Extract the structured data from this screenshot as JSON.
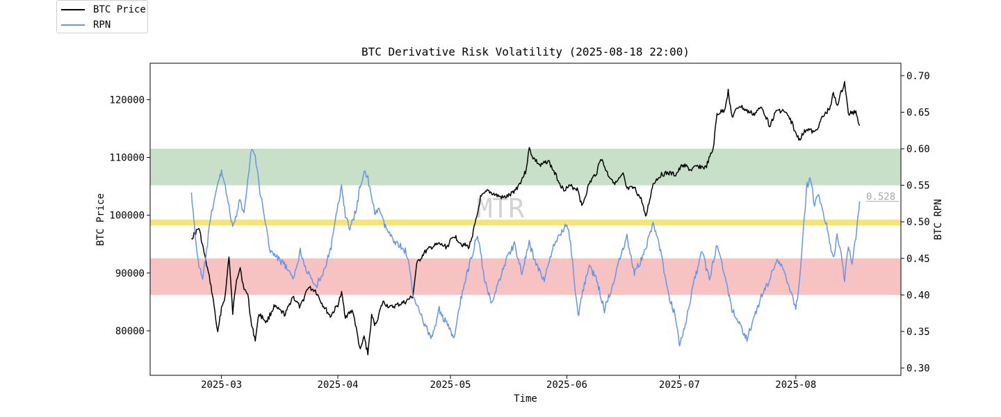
{
  "chart_data": {
    "type": "line",
    "title": "BTC Derivative Risk Volatility (2025-08-18 22:00)",
    "xlabel": "Time",
    "ylabel_left": "BTC Price",
    "ylabel_right": "BTC RPN",
    "watermark": "MTR",
    "x_ticks": [
      "2025-03",
      "2025-04",
      "2025-05",
      "2025-06",
      "2025-07",
      "2025-08"
    ],
    "x_range": [
      "2025-02-10",
      "2025-08-29"
    ],
    "y_left_ticks": [
      80000,
      90000,
      100000,
      110000,
      120000
    ],
    "y_left_range": [
      72300,
      126300
    ],
    "y_right_ticks": [
      "0.30",
      "0.35",
      "0.40",
      "0.45",
      "0.50",
      "0.55",
      "0.60",
      "0.65",
      "0.70"
    ],
    "y_right_range": [
      0.29,
      0.717
    ],
    "bands": [
      {
        "name": "high-risk-band",
        "from": 0.55,
        "to": 0.6,
        "color": "#c8e0c8"
      },
      {
        "name": "neutral-line",
        "from": 0.495,
        "to": 0.503,
        "color": "#f8e37a"
      },
      {
        "name": "low-risk-band",
        "from": 0.4,
        "to": 0.45,
        "color": "#f6c2c2"
      }
    ],
    "last_value_label": "0.528",
    "last_value": 0.528,
    "series": [
      {
        "name": "BTC Price",
        "axis": "left",
        "color": "#000000",
        "points": [
          [
            "2025-02-21",
            96000
          ],
          [
            "2025-02-23",
            97800
          ],
          [
            "2025-02-25",
            91500
          ],
          [
            "2025-02-26",
            88500
          ],
          [
            "2025-02-27",
            84500
          ],
          [
            "2025-02-28",
            79500
          ],
          [
            "2025-03-01",
            84000
          ],
          [
            "2025-03-02",
            86000
          ],
          [
            "2025-03-03",
            93000
          ],
          [
            "2025-03-04",
            83000
          ],
          [
            "2025-03-05",
            89000
          ],
          [
            "2025-03-06",
            91000
          ],
          [
            "2025-03-07",
            87000
          ],
          [
            "2025-03-08",
            86500
          ],
          [
            "2025-03-09",
            81000
          ],
          [
            "2025-03-10",
            78500
          ],
          [
            "2025-03-11",
            83000
          ],
          [
            "2025-03-13",
            81500
          ],
          [
            "2025-03-15",
            84200
          ],
          [
            "2025-03-18",
            82800
          ],
          [
            "2025-03-20",
            86000
          ],
          [
            "2025-03-22",
            84000
          ],
          [
            "2025-03-24",
            87500
          ],
          [
            "2025-03-26",
            87000
          ],
          [
            "2025-03-28",
            84500
          ],
          [
            "2025-03-30",
            82500
          ],
          [
            "2025-04-01",
            84500
          ],
          [
            "2025-04-02",
            86500
          ],
          [
            "2025-04-03",
            82500
          ],
          [
            "2025-04-05",
            83500
          ],
          [
            "2025-04-07",
            76500
          ],
          [
            "2025-04-08",
            79000
          ],
          [
            "2025-04-09",
            76000
          ],
          [
            "2025-04-10",
            82500
          ],
          [
            "2025-04-11",
            81000
          ],
          [
            "2025-04-13",
            85000
          ],
          [
            "2025-04-15",
            84000
          ],
          [
            "2025-04-17",
            84500
          ],
          [
            "2025-04-19",
            85000
          ],
          [
            "2025-04-21",
            86000
          ],
          [
            "2025-04-22",
            91500
          ],
          [
            "2025-04-24",
            93500
          ],
          [
            "2025-04-26",
            94500
          ],
          [
            "2025-04-28",
            95000
          ],
          [
            "2025-04-30",
            94500
          ],
          [
            "2025-05-02",
            96500
          ],
          [
            "2025-05-04",
            95000
          ],
          [
            "2025-05-06",
            94500
          ],
          [
            "2025-05-08",
            99500
          ],
          [
            "2025-05-09",
            103000
          ],
          [
            "2025-05-11",
            104200
          ],
          [
            "2025-05-13",
            103500
          ],
          [
            "2025-05-15",
            103000
          ],
          [
            "2025-05-17",
            103500
          ],
          [
            "2025-05-19",
            105000
          ],
          [
            "2025-05-21",
            107500
          ],
          [
            "2025-05-22",
            111500
          ],
          [
            "2025-05-23",
            110000
          ],
          [
            "2025-05-25",
            108500
          ],
          [
            "2025-05-27",
            109500
          ],
          [
            "2025-05-29",
            107000
          ],
          [
            "2025-05-31",
            104500
          ],
          [
            "2025-06-02",
            105000
          ],
          [
            "2025-06-04",
            104500
          ],
          [
            "2025-06-05",
            101500
          ],
          [
            "2025-06-07",
            105500
          ],
          [
            "2025-06-09",
            107500
          ],
          [
            "2025-06-10",
            110000
          ],
          [
            "2025-06-12",
            107000
          ],
          [
            "2025-06-14",
            105500
          ],
          [
            "2025-06-16",
            107000
          ],
          [
            "2025-06-17",
            104500
          ],
          [
            "2025-06-19",
            104700
          ],
          [
            "2025-06-21",
            102500
          ],
          [
            "2025-06-22",
            99500
          ],
          [
            "2025-06-24",
            105500
          ],
          [
            "2025-06-26",
            107000
          ],
          [
            "2025-06-28",
            107300
          ],
          [
            "2025-06-30",
            107000
          ],
          [
            "2025-07-02",
            108800
          ],
          [
            "2025-07-04",
            107800
          ],
          [
            "2025-07-06",
            108500
          ],
          [
            "2025-07-08",
            108200
          ],
          [
            "2025-07-10",
            111500
          ],
          [
            "2025-07-11",
            117500
          ],
          [
            "2025-07-13",
            118200
          ],
          [
            "2025-07-14",
            121500
          ],
          [
            "2025-07-15",
            117000
          ],
          [
            "2025-07-17",
            119000
          ],
          [
            "2025-07-19",
            118000
          ],
          [
            "2025-07-21",
            117500
          ],
          [
            "2025-07-23",
            118800
          ],
          [
            "2025-07-25",
            115500
          ],
          [
            "2025-07-27",
            118200
          ],
          [
            "2025-07-29",
            118000
          ],
          [
            "2025-07-31",
            116000
          ],
          [
            "2025-08-01",
            114000
          ],
          [
            "2025-08-02",
            113200
          ],
          [
            "2025-08-04",
            115000
          ],
          [
            "2025-08-06",
            114200
          ],
          [
            "2025-08-08",
            116800
          ],
          [
            "2025-08-10",
            118500
          ],
          [
            "2025-08-11",
            121000
          ],
          [
            "2025-08-12",
            119000
          ],
          [
            "2025-08-14",
            123000
          ],
          [
            "2025-08-15",
            117500
          ],
          [
            "2025-08-17",
            118000
          ],
          [
            "2025-08-18",
            115500
          ]
        ]
      },
      {
        "name": "RPN",
        "axis": "right",
        "color": "#6495ed",
        "points": [
          [
            "2025-02-21",
            0.54
          ],
          [
            "2025-02-22",
            0.48
          ],
          [
            "2025-02-23",
            0.44
          ],
          [
            "2025-02-24",
            0.42
          ],
          [
            "2025-02-25",
            0.46
          ],
          [
            "2025-02-26",
            0.5
          ],
          [
            "2025-02-27",
            0.53
          ],
          [
            "2025-02-28",
            0.55
          ],
          [
            "2025-03-01",
            0.57
          ],
          [
            "2025-03-02",
            0.55
          ],
          [
            "2025-03-03",
            0.52
          ],
          [
            "2025-03-04",
            0.49
          ],
          [
            "2025-03-05",
            0.51
          ],
          [
            "2025-03-06",
            0.53
          ],
          [
            "2025-03-07",
            0.51
          ],
          [
            "2025-03-08",
            0.56
          ],
          [
            "2025-03-09",
            0.6
          ],
          [
            "2025-03-10",
            0.59
          ],
          [
            "2025-03-11",
            0.55
          ],
          [
            "2025-03-12",
            0.52
          ],
          [
            "2025-03-13",
            0.49
          ],
          [
            "2025-03-14",
            0.46
          ],
          [
            "2025-03-16",
            0.45
          ],
          [
            "2025-03-18",
            0.44
          ],
          [
            "2025-03-20",
            0.42
          ],
          [
            "2025-03-22",
            0.46
          ],
          [
            "2025-03-24",
            0.43
          ],
          [
            "2025-03-26",
            0.41
          ],
          [
            "2025-03-28",
            0.43
          ],
          [
            "2025-03-30",
            0.46
          ],
          [
            "2025-04-01",
            0.52
          ],
          [
            "2025-04-02",
            0.55
          ],
          [
            "2025-04-03",
            0.51
          ],
          [
            "2025-04-04",
            0.49
          ],
          [
            "2025-04-05",
            0.5
          ],
          [
            "2025-04-06",
            0.52
          ],
          [
            "2025-04-07",
            0.55
          ],
          [
            "2025-04-08",
            0.57
          ],
          [
            "2025-04-09",
            0.56
          ],
          [
            "2025-04-10",
            0.53
          ],
          [
            "2025-04-11",
            0.51
          ],
          [
            "2025-04-12",
            0.52
          ],
          [
            "2025-04-13",
            0.5
          ],
          [
            "2025-04-15",
            0.48
          ],
          [
            "2025-04-17",
            0.47
          ],
          [
            "2025-04-19",
            0.46
          ],
          [
            "2025-04-20",
            0.44
          ],
          [
            "2025-04-21",
            0.4
          ],
          [
            "2025-04-22",
            0.39
          ],
          [
            "2025-04-24",
            0.36
          ],
          [
            "2025-04-26",
            0.34
          ],
          [
            "2025-04-28",
            0.38
          ],
          [
            "2025-04-30",
            0.36
          ],
          [
            "2025-05-02",
            0.34
          ],
          [
            "2025-05-04",
            0.4
          ],
          [
            "2025-05-06",
            0.44
          ],
          [
            "2025-05-08",
            0.48
          ],
          [
            "2025-05-09",
            0.46
          ],
          [
            "2025-05-10",
            0.42
          ],
          [
            "2025-05-12",
            0.39
          ],
          [
            "2025-05-14",
            0.42
          ],
          [
            "2025-05-16",
            0.45
          ],
          [
            "2025-05-18",
            0.47
          ],
          [
            "2025-05-20",
            0.43
          ],
          [
            "2025-05-22",
            0.47
          ],
          [
            "2025-05-24",
            0.44
          ],
          [
            "2025-05-26",
            0.42
          ],
          [
            "2025-05-28",
            0.46
          ],
          [
            "2025-05-30",
            0.48
          ],
          [
            "2025-06-01",
            0.5
          ],
          [
            "2025-06-02",
            0.47
          ],
          [
            "2025-06-03",
            0.42
          ],
          [
            "2025-06-04",
            0.37
          ],
          [
            "2025-06-05",
            0.4
          ],
          [
            "2025-06-07",
            0.44
          ],
          [
            "2025-06-09",
            0.42
          ],
          [
            "2025-06-11",
            0.38
          ],
          [
            "2025-06-13",
            0.41
          ],
          [
            "2025-06-15",
            0.45
          ],
          [
            "2025-06-17",
            0.48
          ],
          [
            "2025-06-19",
            0.43
          ],
          [
            "2025-06-21",
            0.45
          ],
          [
            "2025-06-23",
            0.48
          ],
          [
            "2025-06-24",
            0.5
          ],
          [
            "2025-06-26",
            0.46
          ],
          [
            "2025-06-28",
            0.4
          ],
          [
            "2025-06-30",
            0.37
          ],
          [
            "2025-07-01",
            0.33
          ],
          [
            "2025-07-03",
            0.37
          ],
          [
            "2025-07-05",
            0.42
          ],
          [
            "2025-07-07",
            0.46
          ],
          [
            "2025-07-09",
            0.42
          ],
          [
            "2025-07-11",
            0.47
          ],
          [
            "2025-07-13",
            0.43
          ],
          [
            "2025-07-15",
            0.38
          ],
          [
            "2025-07-17",
            0.36
          ],
          [
            "2025-07-19",
            0.34
          ],
          [
            "2025-07-21",
            0.37
          ],
          [
            "2025-07-23",
            0.4
          ],
          [
            "2025-07-25",
            0.42
          ],
          [
            "2025-07-27",
            0.45
          ],
          [
            "2025-07-29",
            0.43
          ],
          [
            "2025-07-31",
            0.4
          ],
          [
            "2025-08-01",
            0.38
          ],
          [
            "2025-08-02",
            0.42
          ],
          [
            "2025-08-03",
            0.49
          ],
          [
            "2025-08-04",
            0.55
          ],
          [
            "2025-08-05",
            0.56
          ],
          [
            "2025-08-06",
            0.52
          ],
          [
            "2025-08-07",
            0.54
          ],
          [
            "2025-08-08",
            0.52
          ],
          [
            "2025-08-09",
            0.5
          ],
          [
            "2025-08-10",
            0.47
          ],
          [
            "2025-08-11",
            0.45
          ],
          [
            "2025-08-12",
            0.48
          ],
          [
            "2025-08-13",
            0.46
          ],
          [
            "2025-08-14",
            0.42
          ],
          [
            "2025-08-15",
            0.47
          ],
          [
            "2025-08-16",
            0.44
          ],
          [
            "2025-08-17",
            0.48
          ],
          [
            "2025-08-18",
            0.528
          ]
        ]
      }
    ]
  }
}
